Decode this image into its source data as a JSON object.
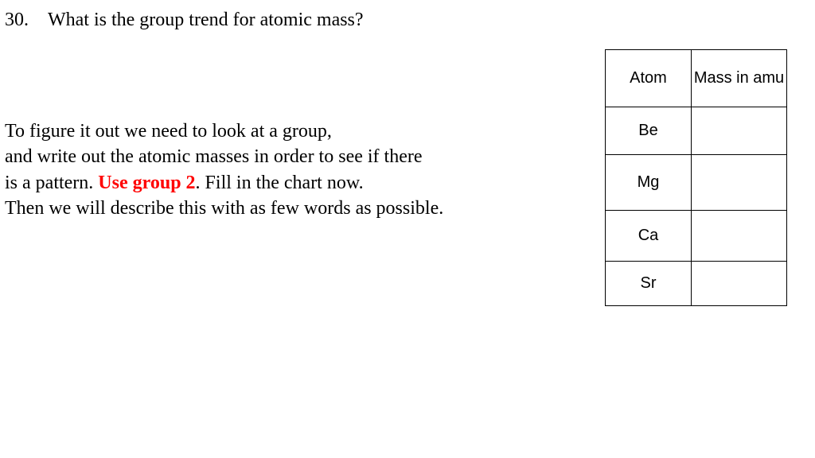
{
  "question": {
    "number": "30.",
    "text": "What is the group trend for atomic mass?"
  },
  "explain": {
    "line1": "To figure it out we need to look at a group,",
    "line2": "and write out the atomic masses in order to see if there",
    "line3_a": "is a pattern.  ",
    "line3_red": "Use group 2",
    "line3_b": ".  Fill in the chart now.",
    "line4": "Then we will describe this with as few words as possible."
  },
  "table": {
    "headers": {
      "col1": "Atom",
      "col2": "Mass in amu"
    },
    "rows": [
      {
        "atom": "Be",
        "mass": ""
      },
      {
        "atom": "Mg",
        "mass": ""
      },
      {
        "atom": "Ca",
        "mass": ""
      },
      {
        "atom": "Sr",
        "mass": ""
      }
    ]
  }
}
